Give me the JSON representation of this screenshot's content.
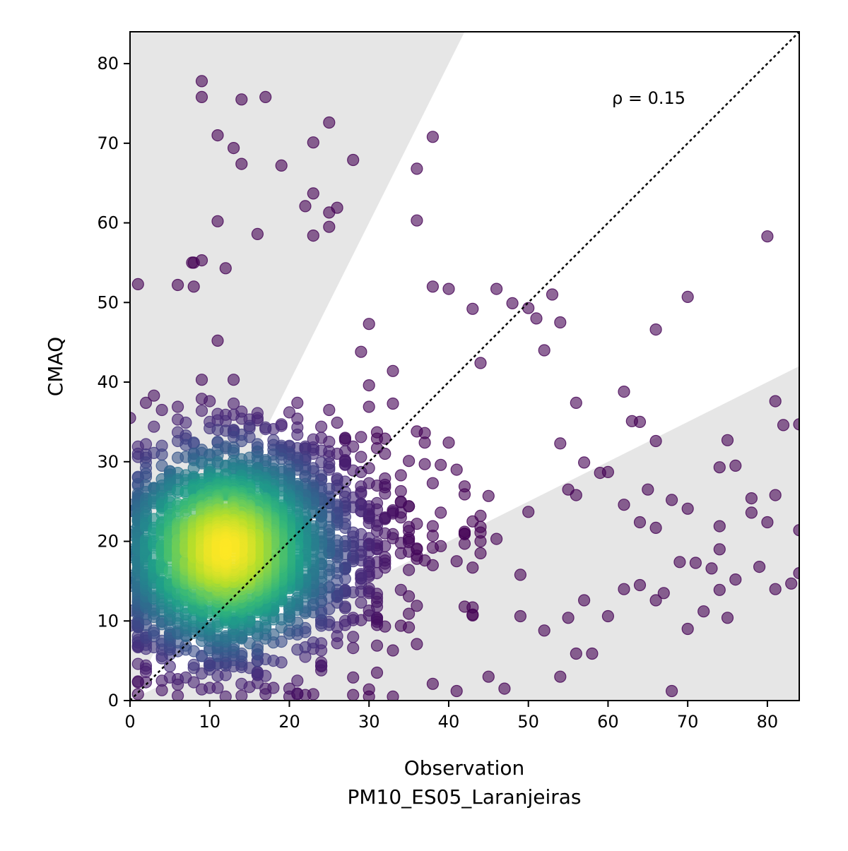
{
  "chart_data": {
    "type": "scatter",
    "title": "",
    "xlabel": "Observation",
    "xlabel_line2": "PM10_ES05_Laranjeiras",
    "ylabel": "CMAQ",
    "annotation": "ρ = 0.15",
    "xlim": [
      0,
      84
    ],
    "ylim": [
      0,
      84
    ],
    "xticks": [
      0,
      10,
      20,
      30,
      40,
      50,
      60,
      70,
      80
    ],
    "yticks": [
      0,
      10,
      20,
      30,
      40,
      50,
      60,
      70,
      80
    ],
    "grid": false,
    "reference_line": "1:1",
    "shaded_region": "outside factor-of-2 band",
    "colormap": "viridis (point density)",
    "colors": {
      "shade": "#e6e6e6",
      "low_density": "#440154",
      "mid_density": "#21918c",
      "high_density": "#fde725"
    },
    "outliers": [
      [
        1,
        52.3
      ],
      [
        9,
        77.8
      ],
      [
        9,
        75.8
      ],
      [
        14,
        75.5
      ],
      [
        17,
        75.8
      ],
      [
        11,
        71
      ],
      [
        13,
        69.4
      ],
      [
        14,
        67.4
      ],
      [
        19,
        67.2
      ],
      [
        25,
        72.6
      ],
      [
        23,
        70.1
      ],
      [
        28,
        67.9
      ],
      [
        38,
        70.8
      ],
      [
        36,
        66.8
      ],
      [
        23,
        63.7
      ],
      [
        22,
        62.1
      ],
      [
        25,
        61.3
      ],
      [
        26,
        61.9
      ],
      [
        11,
        60.2
      ],
      [
        25,
        59.5
      ],
      [
        23,
        58.4
      ],
      [
        16,
        58.6
      ],
      [
        36,
        60.3
      ],
      [
        80,
        58.3
      ],
      [
        8,
        55
      ],
      [
        7.8,
        55
      ],
      [
        9,
        55.3
      ],
      [
        12,
        54.3
      ],
      [
        6,
        52.2
      ],
      [
        8,
        52
      ],
      [
        30,
        47.3
      ],
      [
        38,
        52
      ],
      [
        40,
        51.7
      ],
      [
        43,
        49.2
      ],
      [
        46,
        51.7
      ],
      [
        48,
        49.9
      ],
      [
        50,
        49.3
      ],
      [
        53,
        51
      ],
      [
        54,
        47.5
      ],
      [
        70,
        50.7
      ],
      [
        66,
        46.6
      ],
      [
        51,
        48
      ],
      [
        52,
        44
      ],
      [
        62,
        38.8
      ],
      [
        56,
        37.4
      ],
      [
        64,
        35
      ],
      [
        63,
        35.1
      ],
      [
        66,
        32.6
      ],
      [
        75,
        32.7
      ],
      [
        81,
        37.6
      ],
      [
        82,
        34.6
      ],
      [
        84,
        34.7
      ],
      [
        60,
        28.7
      ],
      [
        68,
        25.2
      ],
      [
        70,
        24.1
      ],
      [
        73,
        16.6
      ],
      [
        76,
        15.2
      ],
      [
        78,
        25.4
      ],
      [
        81,
        25.8
      ],
      [
        84,
        21.4
      ],
      [
        80,
        22.4
      ],
      [
        78,
        23.6
      ],
      [
        84,
        16
      ],
      [
        83,
        14.7
      ],
      [
        81,
        14
      ],
      [
        79,
        16.8
      ],
      [
        75,
        10.4
      ],
      [
        72,
        11.2
      ],
      [
        70,
        9
      ],
      [
        68,
        1.2
      ],
      [
        56,
        5.9
      ],
      [
        58,
        5.9
      ],
      [
        54,
        3
      ],
      [
        47,
        1.5
      ],
      [
        45,
        3
      ],
      [
        41,
        1.2
      ],
      [
        38,
        2.1
      ],
      [
        30,
        0.5
      ],
      [
        23,
        0.8
      ],
      [
        49,
        15.8
      ],
      [
        52,
        8.8
      ],
      [
        55,
        10.4
      ],
      [
        57,
        12.6
      ],
      [
        60,
        10.6
      ],
      [
        62,
        14
      ],
      [
        64,
        14.5
      ],
      [
        66,
        12.6
      ],
      [
        67,
        13.5
      ],
      [
        69,
        17.4
      ],
      [
        66,
        21.7
      ],
      [
        64,
        22.4
      ],
      [
        62,
        24.6
      ],
      [
        65,
        26.5
      ],
      [
        59,
        28.6
      ],
      [
        57,
        29.9
      ],
      [
        74,
        29.3
      ],
      [
        76,
        29.5
      ],
      [
        74,
        21.9
      ],
      [
        74,
        19
      ],
      [
        71,
        17.3
      ],
      [
        74,
        13.9
      ]
    ]
  }
}
